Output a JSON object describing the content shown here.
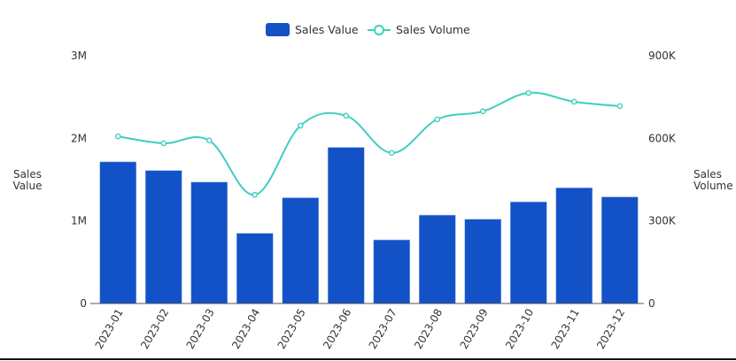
{
  "chart_data": {
    "type": "bar",
    "title": "",
    "categories": [
      "2023-01",
      "2023-02",
      "2023-03",
      "2023-04",
      "2023-05",
      "2023-06",
      "2023-07",
      "2023-08",
      "2023-09",
      "2023-10",
      "2023-11",
      "2023-12"
    ],
    "series": [
      {
        "name": "Sales Value",
        "type": "bar",
        "axis": "left",
        "color": "#1351c6",
        "values": [
          1715000,
          1610000,
          1470000,
          850000,
          1280000,
          1890000,
          770000,
          1070000,
          1020000,
          1230000,
          1400000,
          1290000
        ]
      },
      {
        "name": "Sales Volume",
        "type": "line",
        "axis": "right",
        "color": "#3ecfbf",
        "values": [
          607000,
          582000,
          592000,
          395000,
          646000,
          682000,
          547000,
          669000,
          698000,
          765000,
          733000,
          717000
        ]
      }
    ],
    "left_axis": {
      "label": [
        "Sales",
        "Value"
      ],
      "ticks": [
        "0",
        "1M",
        "2M",
        "3M"
      ],
      "ylim": [
        0,
        3000000
      ]
    },
    "right_axis": {
      "label": [
        "Sales",
        "Volume"
      ],
      "ticks": [
        "0",
        "300K",
        "600K",
        "900K"
      ],
      "ylim": [
        0,
        900000
      ]
    },
    "legend": {
      "position": "top",
      "entries": [
        "Sales Value",
        "Sales Volume"
      ]
    },
    "grid": false
  }
}
